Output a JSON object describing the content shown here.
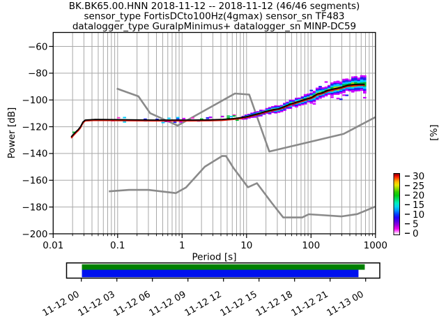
{
  "figure": {
    "title_line1": "BK.BK65.00.HNN   2018-11-12 -- 2018-11-12  (46/46 segments)",
    "title_line2": "sensor_type FortisDCto100Hz(4gmax) sensor_sn TF483",
    "title_line3": "datalogger_type GuralpMinimus+ datalogger_sn MINP-DC59",
    "background": "#ffffff"
  },
  "chart_data": {
    "type": "heatmap",
    "title": "BK.BK65.00.HNN   2018-11-12 -- 2018-11-12  (46/46 segments)",
    "subtitle": "sensor_type FortisDCto100Hz(4gmax) sensor_sn TF483 | datalogger_type GuralpMinimus+ datalogger_sn MINP-DC59",
    "xlabel": "Period [s]",
    "ylabel": "Power [dB]",
    "x_scale": "log",
    "xlim": [
      0.01,
      1000
    ],
    "ylim": [
      -200,
      -50
    ],
    "x_tick_values": [
      0.01,
      0.1,
      1,
      10,
      100,
      1000
    ],
    "x_tick_labels": [
      "0.01",
      "0.1",
      "1",
      "10",
      "100",
      "1000"
    ],
    "y_tick_values": [
      -60,
      -80,
      -100,
      -120,
      -140,
      -160,
      -180,
      -200
    ],
    "y_tick_labels": [
      "−60",
      "−80",
      "−100",
      "−120",
      "−140",
      "−160",
      "−180",
      "−200"
    ],
    "grid": true,
    "grid_color": "#a8a8a8",
    "colorbar": {
      "label": "[%]",
      "tick_values": [
        0,
        5,
        10,
        15,
        20,
        25,
        30
      ],
      "tick_labels": [
        "0",
        "5",
        "10",
        "15",
        "20",
        "25",
        "30"
      ],
      "gradient_stops": [
        {
          "offset": 0.0,
          "color": "#ffffff"
        },
        {
          "offset": 0.03,
          "color": "#ffd0ff"
        },
        {
          "offset": 0.07,
          "color": "#ff44ff"
        },
        {
          "offset": 0.1,
          "color": "#ee00ee"
        },
        {
          "offset": 0.16,
          "color": "#9900dd"
        },
        {
          "offset": 0.22,
          "color": "#5500e6"
        },
        {
          "offset": 0.28,
          "color": "#2200ff"
        },
        {
          "offset": 0.34,
          "color": "#0044ff"
        },
        {
          "offset": 0.4,
          "color": "#0099ff"
        },
        {
          "offset": 0.46,
          "color": "#00d5ee"
        },
        {
          "offset": 0.52,
          "color": "#00eebb"
        },
        {
          "offset": 0.58,
          "color": "#00dd66"
        },
        {
          "offset": 0.64,
          "color": "#00cc11"
        },
        {
          "offset": 0.7,
          "color": "#33cc00"
        },
        {
          "offset": 0.76,
          "color": "#99dd00"
        },
        {
          "offset": 0.81,
          "color": "#e8e800"
        },
        {
          "offset": 0.86,
          "color": "#ffbb00"
        },
        {
          "offset": 0.9,
          "color": "#ff7700"
        },
        {
          "offset": 0.94,
          "color": "#ff2200"
        },
        {
          "offset": 0.97,
          "color": "#cc0000"
        },
        {
          "offset": 1.0,
          "color": "#7a0000"
        }
      ]
    },
    "series": [
      {
        "name": "psd-mode-line",
        "color": "#dd1100",
        "points": [
          [
            0.019,
            -128.5
          ],
          [
            0.021,
            -126.1
          ],
          [
            0.023,
            -124.1
          ],
          [
            0.0245,
            -122.9
          ],
          [
            0.0265,
            -120.8
          ],
          [
            0.029,
            -117.1
          ],
          [
            0.0315,
            -115.6
          ],
          [
            0.045,
            -115.2
          ],
          [
            0.09,
            -115.3
          ],
          [
            0.35,
            -115.6
          ],
          [
            1.3,
            -115.6
          ],
          [
            2.6,
            -115.5
          ],
          [
            4.2,
            -115.2
          ],
          [
            6.2,
            -114.5
          ],
          [
            8,
            -113.9
          ],
          [
            10,
            -113.1
          ],
          [
            13,
            -111.7
          ],
          [
            15.5,
            -110.8
          ],
          [
            18.5,
            -109.6
          ],
          [
            22,
            -108.7
          ],
          [
            26.5,
            -107.8
          ],
          [
            32,
            -107.1
          ],
          [
            38,
            -105.8
          ],
          [
            46,
            -104.1
          ],
          [
            56,
            -102.8
          ],
          [
            68,
            -101.4
          ],
          [
            83,
            -100.1
          ],
          [
            100,
            -99.0
          ],
          [
            110,
            -98.0
          ],
          [
            125,
            -96.2
          ],
          [
            150,
            -95.3
          ],
          [
            180,
            -93.6
          ],
          [
            230,
            -92.4
          ],
          [
            290,
            -91.3
          ],
          [
            370,
            -89.8
          ],
          [
            450,
            -89.3
          ],
          [
            560,
            -89.1
          ],
          [
            680,
            -89.1
          ]
        ]
      },
      {
        "name": "psd-mean-line",
        "color": "#000000",
        "points": [
          [
            0.019,
            -127.6
          ],
          [
            0.021,
            -125.3
          ],
          [
            0.023,
            -123.3
          ],
          [
            0.0245,
            -122.1
          ],
          [
            0.0265,
            -120.0
          ],
          [
            0.029,
            -116.4
          ],
          [
            0.0315,
            -115.0
          ],
          [
            0.045,
            -114.6
          ],
          [
            0.09,
            -114.7
          ],
          [
            0.35,
            -115.0
          ],
          [
            1.3,
            -115.0
          ],
          [
            2.6,
            -114.9
          ],
          [
            4.2,
            -114.6
          ],
          [
            6.2,
            -113.9
          ],
          [
            8,
            -113.3
          ],
          [
            10,
            -112.5
          ],
          [
            13,
            -111.1
          ],
          [
            15.5,
            -110.2
          ],
          [
            18.5,
            -109.0
          ],
          [
            22,
            -108.1
          ],
          [
            26.5,
            -107.2
          ],
          [
            32,
            -106.5
          ],
          [
            38,
            -105.1
          ],
          [
            46,
            -103.4
          ],
          [
            56,
            -102.1
          ],
          [
            68,
            -100.7
          ],
          [
            83,
            -99.4
          ],
          [
            100,
            -98.3
          ],
          [
            110,
            -97.3
          ],
          [
            125,
            -95.5
          ],
          [
            150,
            -94.6
          ],
          [
            180,
            -92.9
          ],
          [
            230,
            -91.7
          ],
          [
            290,
            -90.6
          ],
          [
            370,
            -89.0
          ],
          [
            450,
            -88.5
          ],
          [
            560,
            -88.3
          ],
          [
            680,
            -88.3
          ]
        ]
      },
      {
        "name": "noise-model-high-nhnm",
        "color": "#8a8a8a",
        "points": [
          [
            0.097,
            -91.5
          ],
          [
            0.21,
            -97.3
          ],
          [
            0.32,
            -109.9
          ],
          [
            0.85,
            -119.2
          ],
          [
            6.6,
            -95.2
          ],
          [
            11,
            -96.0
          ],
          [
            22.5,
            -138.5
          ],
          [
            320,
            -125.4
          ],
          [
            990,
            -112.9
          ]
        ]
      },
      {
        "name": "noise-model-low-nlnm",
        "color": "#8a8a8a",
        "points": [
          [
            0.073,
            -168.3
          ],
          [
            0.15,
            -167.2
          ],
          [
            0.3,
            -167.2
          ],
          [
            0.8,
            -169.6
          ],
          [
            1.15,
            -165.4
          ],
          [
            2.25,
            -149.9
          ],
          [
            4.2,
            -141.8
          ],
          [
            4.8,
            -141.9
          ],
          [
            6.2,
            -150.5
          ],
          [
            10.5,
            -165.2
          ],
          [
            14.5,
            -162.2
          ],
          [
            24.5,
            -176.8
          ],
          [
            37,
            -187.8
          ],
          [
            73,
            -187.8
          ],
          [
            92,
            -185.4
          ],
          [
            165,
            -186.2
          ],
          [
            295,
            -187.0
          ],
          [
            520,
            -185.3
          ],
          [
            990,
            -179.7
          ]
        ]
      }
    ],
    "histogram": {
      "spread_profile_db": [
        [
          0.019,
          0.5
        ],
        [
          0.15,
          0.8
        ],
        [
          1,
          0.9
        ],
        [
          5,
          1.1
        ],
        [
          8,
          1.3
        ],
        [
          10,
          1.6
        ],
        [
          30,
          2.6
        ],
        [
          100,
          3.6
        ],
        [
          300,
          4.9
        ],
        [
          700,
          5.6
        ]
      ],
      "density_profile": [
        [
          0.019,
          0.1
        ],
        [
          0.2,
          0.28
        ],
        [
          1,
          0.38
        ],
        [
          3,
          0.6
        ],
        [
          8,
          0.9
        ],
        [
          15,
          1
        ],
        [
          700,
          1
        ]
      ],
      "period_range": [
        0.019,
        680
      ],
      "palette_outward": [
        "#00bb33",
        "#00ccff",
        "#2222ee",
        "#cc00ff"
      ],
      "inner_accents": [
        "#00bb33",
        "#00bb33",
        "#a8e000",
        "#ff8800"
      ],
      "sparse_palette": [
        "#00bb33",
        "#00ccff",
        "#cc00ff",
        "#2222ee",
        "#ff33cc"
      ]
    }
  },
  "timeline": {
    "tick_labels": [
      "11-12 00",
      "11-12 03",
      "11-12 06",
      "11-12 09",
      "11-12 12",
      "11-12 15",
      "11-12 18",
      "11-12 21",
      "11-13 00"
    ],
    "bars": [
      {
        "name": "coverage-processed",
        "color": "#008000",
        "x0": 0.049,
        "x1": 0.952,
        "y0": 0.09,
        "y1": 0.45
      },
      {
        "name": "coverage-data",
        "color": "#0011ee",
        "x0": 0.049,
        "x1": 0.932,
        "y0": 0.45,
        "y1": 0.94
      }
    ]
  }
}
